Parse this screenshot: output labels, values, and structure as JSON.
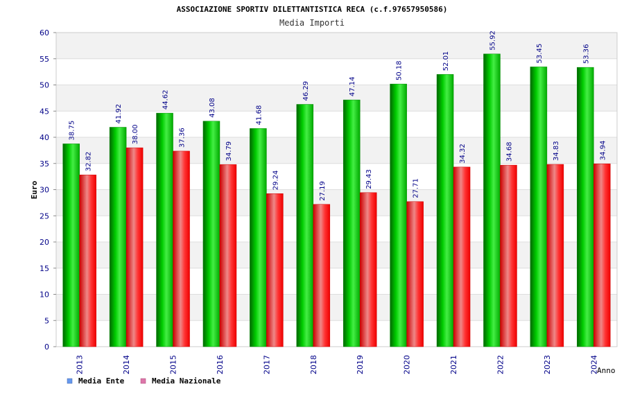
{
  "chart_data": {
    "type": "bar",
    "title": "ASSOCIAZIONE SPORTIV DILETTANTISTICA RECA (c.f.97657950586)",
    "subtitle": "Media Importi",
    "xlabel": "Anno",
    "ylabel": "Euro",
    "ylim": [
      0,
      60
    ],
    "yticks": [
      0,
      5,
      10,
      15,
      20,
      25,
      30,
      35,
      40,
      45,
      50,
      55,
      60
    ],
    "grid": true,
    "legend_position": "bottom-left",
    "categories": [
      "2013",
      "2014",
      "2015",
      "2016",
      "2017",
      "2018",
      "2019",
      "2020",
      "2021",
      "2022",
      "2023",
      "2024"
    ],
    "series": [
      {
        "name": "Media Ente",
        "color": "#00bb00",
        "legend_color": "#6699ee",
        "values": [
          38.75,
          41.92,
          44.62,
          43.08,
          41.68,
          46.29,
          47.14,
          50.18,
          52.01,
          55.92,
          53.45,
          53.36
        ],
        "labels": [
          "38.75",
          "41.92",
          "44.62",
          "43.08",
          "41.68",
          "46.29",
          "47.14",
          "50.18",
          "52.01",
          "55.92",
          "53.45",
          "53.36"
        ]
      },
      {
        "name": "Media Nazionale",
        "color": "#ee0000",
        "legend_color": "#dd77aa",
        "values": [
          32.82,
          38.0,
          37.36,
          34.79,
          29.24,
          27.19,
          29.43,
          27.71,
          34.32,
          34.68,
          34.83,
          34.94
        ],
        "labels": [
          "32.82",
          "38.00",
          "37.36",
          "34.79",
          "29.24",
          "27.19",
          "29.43",
          "27.71",
          "34.32",
          "34.68",
          "34.83",
          "34.94"
        ]
      }
    ]
  }
}
